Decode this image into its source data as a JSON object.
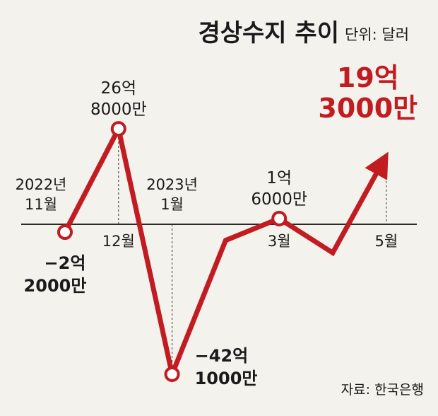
{
  "chart_data": {
    "type": "line",
    "title": "경상수지 추이",
    "unit_label": "단위: 달러",
    "source": "자료: 한국은행",
    "colors": {
      "line": "#c01c22",
      "text": "#1a1a1a",
      "background": "#f4f2ec"
    },
    "ylim": [
      -4600000000,
      2800000000
    ],
    "x_ticks": [
      {
        "label_line1": "2022년",
        "label_line2": "11월",
        "x": 0
      },
      {
        "label_line1": "12월",
        "x": 1
      },
      {
        "label_line1": "2023년",
        "label_line2": "1월",
        "x": 2
      },
      {
        "label_line1": "3월",
        "x": 4
      },
      {
        "label_line1": "5월",
        "x": 6
      }
    ],
    "series": [
      {
        "points": [
          {
            "x": 0,
            "y": -220000000
          },
          {
            "x": 1,
            "y": 2680000000
          },
          {
            "x": 2,
            "y": -4210000000
          },
          {
            "x": 3,
            "y": -450000000
          },
          {
            "x": 4,
            "y": 160000000
          },
          {
            "x": 5,
            "y": -800000000
          },
          {
            "x": 6,
            "y": 1930000000
          }
        ]
      }
    ],
    "annotations": [
      {
        "x": 0,
        "y": -220000000,
        "line1": "−2억",
        "line2": "2000만",
        "pos": "below",
        "marker": true
      },
      {
        "x": 1,
        "y": 2680000000,
        "line1": "26억",
        "line2": "8000만",
        "pos": "above",
        "marker": true
      },
      {
        "x": 2,
        "y": -4210000000,
        "line1": "−42억",
        "line2": "1000만",
        "pos": "right",
        "marker": true
      },
      {
        "x": 4,
        "y": 160000000,
        "line1": "1억",
        "line2": "6000만",
        "pos": "above",
        "marker": true
      },
      {
        "x": 6,
        "y": 1930000000,
        "line1": "19억",
        "line2": "3000만",
        "pos": "highlight",
        "marker": false
      }
    ]
  }
}
